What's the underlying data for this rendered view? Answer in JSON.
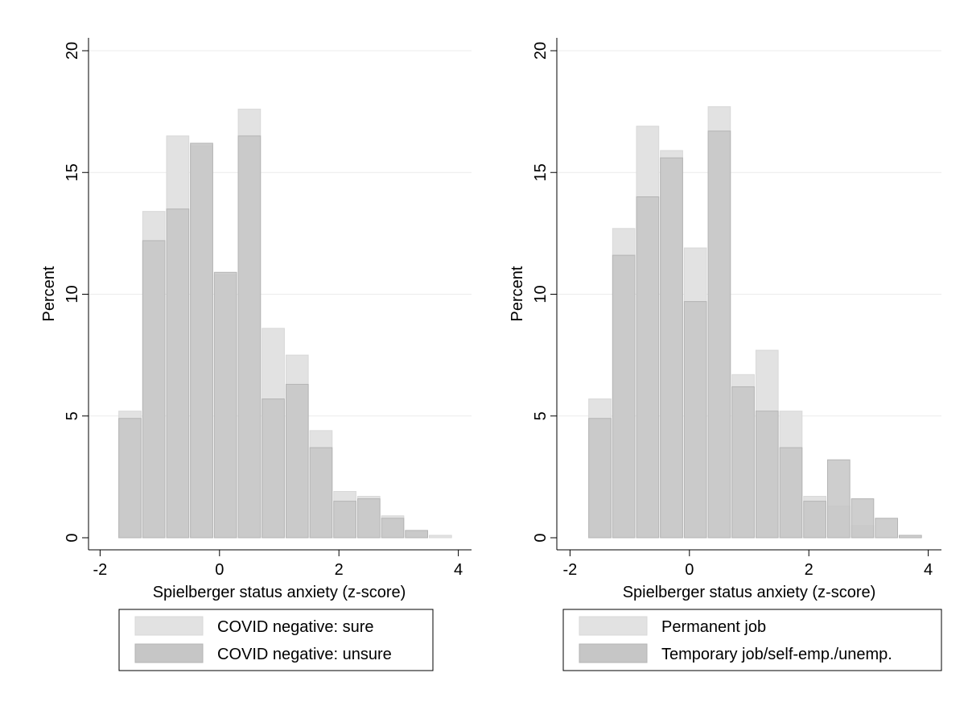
{
  "chart_data": [
    {
      "type": "bar",
      "subtype": "overlaid-histogram",
      "title": "",
      "xlabel": "Spielberger status anxiety (z-score)",
      "ylabel": "Percent",
      "xlim": [
        -2,
        4
      ],
      "ylim": [
        0,
        20
      ],
      "xticks": [
        "-2",
        "0",
        "2",
        "4"
      ],
      "yticks": [
        "0",
        "5",
        "10",
        "15",
        "20"
      ],
      "grid": "horizontal",
      "legend_position": "bottom",
      "bin_width": 0.4,
      "x": [
        -1.5,
        -1.1,
        -0.7,
        -0.3,
        0.1,
        0.5,
        0.9,
        1.3,
        1.7,
        2.1,
        2.5,
        2.9,
        3.3,
        3.7
      ],
      "series": [
        {
          "name": "COVID negative: sure",
          "color": "#e2e2e2",
          "values": [
            5.2,
            13.4,
            16.5,
            16.1,
            10.8,
            17.6,
            8.6,
            7.5,
            4.4,
            1.9,
            1.7,
            0.9,
            0.3,
            0.1
          ]
        },
        {
          "name": "COVID negative: unsure",
          "color": "#c6c6c6",
          "values": [
            4.9,
            12.2,
            13.5,
            16.2,
            10.9,
            16.5,
            5.7,
            6.3,
            3.7,
            1.5,
            1.6,
            0.8,
            0.3,
            0.0
          ]
        }
      ]
    },
    {
      "type": "bar",
      "subtype": "overlaid-histogram",
      "title": "",
      "xlabel": "Spielberger status anxiety (z-score)",
      "ylabel": "Percent",
      "xlim": [
        -2,
        4
      ],
      "ylim": [
        0,
        20
      ],
      "xticks": [
        "-2",
        "0",
        "2",
        "4"
      ],
      "yticks": [
        "0",
        "5",
        "10",
        "15",
        "20"
      ],
      "grid": "horizontal",
      "legend_position": "bottom",
      "bin_width": 0.4,
      "x": [
        -1.5,
        -1.1,
        -0.7,
        -0.3,
        0.1,
        0.5,
        0.9,
        1.3,
        1.7,
        2.1,
        2.5,
        2.9,
        3.3,
        3.7
      ],
      "series": [
        {
          "name": "Permanent job",
          "color": "#e2e2e2",
          "values": [
            5.7,
            12.7,
            16.9,
            15.9,
            11.9,
            17.7,
            6.7,
            7.7,
            5.2,
            1.7,
            1.3,
            0.5,
            0.0,
            0.0
          ]
        },
        {
          "name": "Temporary job/self-emp./unemp.",
          "color": "#c6c6c6",
          "values": [
            4.9,
            11.6,
            14.0,
            15.6,
            9.7,
            16.7,
            6.2,
            5.2,
            3.7,
            1.5,
            3.2,
            1.6,
            0.8,
            0.1
          ]
        }
      ]
    }
  ]
}
